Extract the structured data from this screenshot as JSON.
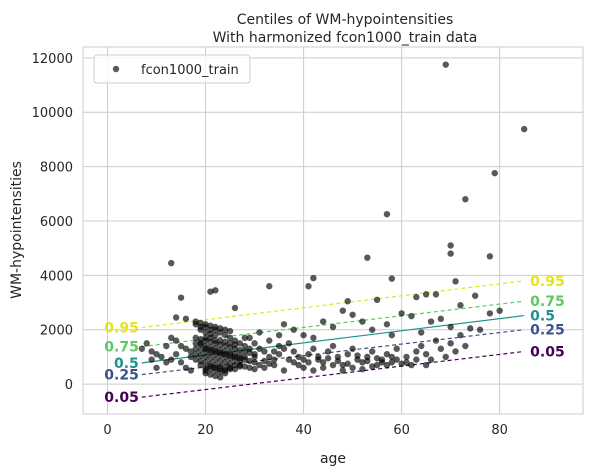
{
  "chart_data": {
    "type": "scatter",
    "title": "Centiles of WM-hypointensities",
    "subtitle": "With harmonized fcon1000_train data",
    "xlabel": "age",
    "ylabel": "WM-hypointensities",
    "xlim": [
      -5,
      97
    ],
    "ylim": [
      -1100,
      12400
    ],
    "xticks": [
      0,
      20,
      40,
      60,
      80
    ],
    "yticks": [
      0,
      2000,
      4000,
      6000,
      8000,
      10000,
      12000
    ],
    "grid": true,
    "legend": {
      "position": "top-left",
      "entries": [
        "fcon1000_train"
      ]
    },
    "colors": {
      "points": "#000000",
      "c005": "#440154",
      "c025": "#3b528b",
      "c05": "#21918c",
      "c075": "#5ec962",
      "c095": "#e7e419",
      "grid": "#cccccc",
      "spine": "#cccccc"
    },
    "centiles": [
      {
        "label": "0.05",
        "x": [
          7,
          85
        ],
        "y": [
          -480,
          1200
        ],
        "dash": true,
        "color": "#440154"
      },
      {
        "label": "0.25",
        "x": [
          7,
          85
        ],
        "y": [
          350,
          2000
        ],
        "dash": true,
        "color": "#3b528b"
      },
      {
        "label": "0.5",
        "x": [
          7,
          85
        ],
        "y": [
          780,
          2520
        ],
        "dash": false,
        "color": "#21918c"
      },
      {
        "label": "0.75",
        "x": [
          7,
          85
        ],
        "y": [
          1380,
          3050
        ],
        "dash": true,
        "color": "#5ec962"
      },
      {
        "label": "0.95",
        "x": [
          7,
          85
        ],
        "y": [
          2080,
          3800
        ],
        "dash": true,
        "color": "#e7e419"
      }
    ],
    "series": [
      {
        "name": "fcon1000_train",
        "points": [
          [
            69,
            11750
          ],
          [
            85,
            9380
          ],
          [
            79,
            7760
          ],
          [
            73,
            6800
          ],
          [
            57,
            6250
          ],
          [
            70,
            5100
          ],
          [
            70,
            4800
          ],
          [
            78,
            4700
          ],
          [
            53,
            4650
          ],
          [
            13,
            4450
          ],
          [
            42,
            3900
          ],
          [
            58,
            3880
          ],
          [
            41,
            3600
          ],
          [
            33,
            3600
          ],
          [
            71,
            3780
          ],
          [
            22,
            3450
          ],
          [
            21,
            3400
          ],
          [
            15,
            3180
          ],
          [
            65,
            3300
          ],
          [
            67,
            3300
          ],
          [
            63,
            3200
          ],
          [
            75,
            3250
          ],
          [
            55,
            3100
          ],
          [
            49,
            3050
          ],
          [
            26,
            2800
          ],
          [
            48,
            2700
          ],
          [
            72,
            2900
          ],
          [
            78,
            2600
          ],
          [
            80,
            2700
          ],
          [
            60,
            2600
          ],
          [
            62,
            2500
          ],
          [
            68,
            2400
          ],
          [
            57,
            2200
          ],
          [
            50,
            2550
          ],
          [
            52,
            2300
          ],
          [
            36,
            2200
          ],
          [
            44,
            2300
          ],
          [
            46,
            2100
          ],
          [
            38,
            2000
          ],
          [
            54,
            2000
          ],
          [
            66,
            2300
          ],
          [
            70,
            2100
          ],
          [
            74,
            2050
          ],
          [
            76,
            2000
          ],
          [
            64,
            1900
          ],
          [
            58,
            1800
          ],
          [
            40,
            1800
          ],
          [
            42,
            1700
          ],
          [
            14,
            2450
          ],
          [
            16,
            2400
          ],
          [
            18,
            2300
          ],
          [
            19,
            2250
          ],
          [
            20,
            2200
          ],
          [
            21,
            2150
          ],
          [
            22,
            2100
          ],
          [
            23,
            2050
          ],
          [
            24,
            2000
          ],
          [
            25,
            1950
          ],
          [
            19,
            2100
          ],
          [
            20,
            1900
          ],
          [
            21,
            1850
          ],
          [
            22,
            1800
          ],
          [
            18,
            1700
          ],
          [
            19,
            1650
          ],
          [
            20,
            1600
          ],
          [
            21,
            1550
          ],
          [
            22,
            1500
          ],
          [
            23,
            1450
          ],
          [
            24,
            1400
          ],
          [
            25,
            1350
          ],
          [
            26,
            1300
          ],
          [
            27,
            1250
          ],
          [
            28,
            1200
          ],
          [
            29,
            1150
          ],
          [
            30,
            1100
          ],
          [
            18,
            1500
          ],
          [
            19,
            1450
          ],
          [
            20,
            1400
          ],
          [
            21,
            1350
          ],
          [
            22,
            1300
          ],
          [
            23,
            1250
          ],
          [
            24,
            1200
          ],
          [
            25,
            1150
          ],
          [
            26,
            1100
          ],
          [
            27,
            1050
          ],
          [
            28,
            1000
          ],
          [
            18,
            1300
          ],
          [
            19,
            1250
          ],
          [
            20,
            1200
          ],
          [
            21,
            1150
          ],
          [
            22,
            1100
          ],
          [
            23,
            1050
          ],
          [
            24,
            1000
          ],
          [
            25,
            950
          ],
          [
            26,
            900
          ],
          [
            27,
            850
          ],
          [
            18,
            1100
          ],
          [
            19,
            1050
          ],
          [
            20,
            1000
          ],
          [
            21,
            950
          ],
          [
            22,
            900
          ],
          [
            23,
            850
          ],
          [
            24,
            800
          ],
          [
            25,
            750
          ],
          [
            26,
            700
          ],
          [
            27,
            650
          ],
          [
            19,
            850
          ],
          [
            20,
            800
          ],
          [
            21,
            750
          ],
          [
            22,
            700
          ],
          [
            23,
            650
          ],
          [
            24,
            600
          ],
          [
            25,
            550
          ],
          [
            20,
            600
          ],
          [
            21,
            550
          ],
          [
            22,
            500
          ],
          [
            23,
            450
          ],
          [
            24,
            400
          ],
          [
            20,
            400
          ],
          [
            21,
            350
          ],
          [
            22,
            300
          ],
          [
            23,
            250
          ],
          [
            19,
            700
          ],
          [
            18,
            900
          ],
          [
            17,
            1000
          ],
          [
            17,
            1200
          ],
          [
            16,
            1300
          ],
          [
            15,
            1400
          ],
          [
            14,
            1100
          ],
          [
            13,
            900
          ],
          [
            12,
            800
          ],
          [
            11,
            1000
          ],
          [
            10,
            1100
          ],
          [
            9,
            900
          ],
          [
            8,
            1500
          ],
          [
            7,
            1300
          ],
          [
            9,
            1200
          ],
          [
            10,
            600
          ],
          [
            12,
            1400
          ],
          [
            13,
            1700
          ],
          [
            14,
            1600
          ],
          [
            15,
            800
          ],
          [
            16,
            600
          ],
          [
            17,
            500
          ],
          [
            30,
            1500
          ],
          [
            31,
            1300
          ],
          [
            32,
            1200
          ],
          [
            33,
            1000
          ],
          [
            34,
            900
          ],
          [
            35,
            1100
          ],
          [
            36,
            1300
          ],
          [
            37,
            1500
          ],
          [
            38,
            1200
          ],
          [
            39,
            1000
          ],
          [
            40,
            900
          ],
          [
            41,
            1100
          ],
          [
            42,
            1300
          ],
          [
            43,
            1000
          ],
          [
            44,
            800
          ],
          [
            45,
            1200
          ],
          [
            46,
            1400
          ],
          [
            47,
            1000
          ],
          [
            48,
            700
          ],
          [
            49,
            1100
          ],
          [
            50,
            1300
          ],
          [
            51,
            900
          ],
          [
            52,
            800
          ],
          [
            53,
            1000
          ],
          [
            54,
            1200
          ],
          [
            55,
            700
          ],
          [
            56,
            900
          ],
          [
            57,
            1100
          ],
          [
            58,
            800
          ],
          [
            59,
            1300
          ],
          [
            60,
            750
          ],
          [
            61,
            1000
          ],
          [
            62,
            700
          ],
          [
            63,
            1200
          ],
          [
            64,
            1400
          ],
          [
            65,
            1100
          ],
          [
            66,
            900
          ],
          [
            67,
            1600
          ],
          [
            68,
            1300
          ],
          [
            69,
            1000
          ],
          [
            70,
            1500
          ],
          [
            71,
            1200
          ],
          [
            72,
            1800
          ],
          [
            73,
            1400
          ],
          [
            29,
            1700
          ],
          [
            31,
            1900
          ],
          [
            33,
            1600
          ],
          [
            35,
            1800
          ],
          [
            28,
            1400
          ],
          [
            30,
            800
          ],
          [
            32,
            600
          ],
          [
            34,
            700
          ],
          [
            36,
            500
          ],
          [
            38,
            800
          ],
          [
            40,
            600
          ],
          [
            42,
            500
          ],
          [
            44,
            600
          ],
          [
            46,
            700
          ],
          [
            48,
            500
          ],
          [
            50,
            600
          ],
          [
            52,
            550
          ],
          [
            54,
            650
          ],
          [
            56,
            800
          ],
          [
            58,
            1000
          ],
          [
            25,
            1700
          ],
          [
            26,
            1600
          ],
          [
            27,
            1500
          ],
          [
            28,
            1700
          ],
          [
            29,
            1300
          ],
          [
            24,
            1800
          ],
          [
            23,
            1900
          ],
          [
            22,
            2000
          ],
          [
            21,
            2000
          ],
          [
            20,
            2100
          ],
          [
            19,
            2000
          ],
          [
            18,
            2200
          ],
          [
            20,
            1700
          ],
          [
            21,
            1700
          ],
          [
            22,
            1600
          ],
          [
            23,
            1600
          ],
          [
            24,
            1550
          ],
          [
            25,
            1500
          ],
          [
            26,
            1450
          ],
          [
            19,
            1500
          ],
          [
            20,
            1300
          ],
          [
            21,
            1250
          ],
          [
            22,
            1200
          ],
          [
            23,
            1150
          ],
          [
            24,
            1100
          ],
          [
            25,
            1050
          ],
          [
            26,
            1000
          ],
          [
            27,
            950
          ],
          [
            28,
            900
          ],
          [
            29,
            850
          ],
          [
            30,
            1000
          ],
          [
            20,
            500
          ],
          [
            21,
            650
          ],
          [
            22,
            600
          ],
          [
            23,
            550
          ],
          [
            24,
            500
          ],
          [
            25,
            600
          ],
          [
            26,
            550
          ],
          [
            27,
            700
          ],
          [
            28,
            650
          ],
          [
            29,
            600
          ],
          [
            30,
            550
          ],
          [
            31,
            700
          ],
          [
            32,
            850
          ],
          [
            33,
            750
          ],
          [
            34,
            1200
          ],
          [
            35,
            1400
          ],
          [
            37,
            900
          ],
          [
            39,
            700
          ],
          [
            41,
            800
          ],
          [
            43,
            900
          ],
          [
            45,
            950
          ],
          [
            47,
            850
          ],
          [
            49,
            750
          ],
          [
            51,
            1050
          ],
          [
            53,
            850
          ],
          [
            55,
            950
          ],
          [
            57,
            700
          ],
          [
            59,
            900
          ],
          [
            61,
            800
          ],
          [
            63,
            900
          ],
          [
            65,
            700
          ]
        ]
      }
    ]
  }
}
